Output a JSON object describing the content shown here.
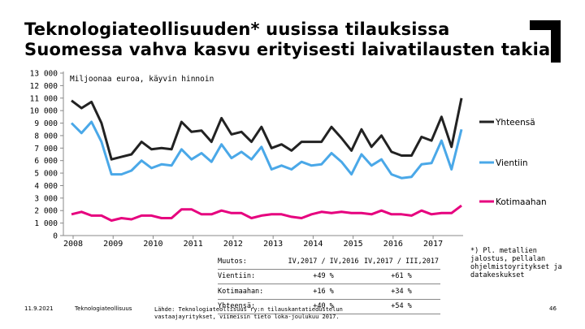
{
  "title": {
    "line1": "Teknologiateollisuuden* uusissa tilauksissa",
    "line2": "Suomessa vahva kasvu erityisesti laivatilausten takia"
  },
  "chart_data": {
    "type": "line",
    "unit_label": "Miljoonaa euroa, käyvin hinnoin",
    "ylim": [
      0,
      13000
    ],
    "yticks": [
      "0",
      "1 000",
      "2 000",
      "3 000",
      "4 000",
      "5 000",
      "6 000",
      "7 000",
      "8 000",
      "9 000",
      "10 000",
      "11 000",
      "12 000",
      "13 000"
    ],
    "ytick_values": [
      0,
      1000,
      2000,
      3000,
      4000,
      5000,
      6000,
      7000,
      8000,
      9000,
      10000,
      11000,
      12000,
      13000
    ],
    "xticks": [
      "2008",
      "2009",
      "2010",
      "2011",
      "2012",
      "2013",
      "2014",
      "2015",
      "2016",
      "2017"
    ],
    "x_start": "2008 Q1",
    "series": [
      {
        "name": "Yhteensä",
        "color": "#222222",
        "values": [
          10800,
          10200,
          10700,
          9000,
          6100,
          6300,
          6500,
          7500,
          6900,
          7000,
          6900,
          9100,
          8300,
          8400,
          7500,
          9400,
          8100,
          8300,
          7500,
          8700,
          7000,
          7300,
          6800,
          7500,
          7500,
          7500,
          8700,
          7800,
          6800,
          8500,
          7100,
          8000,
          6700,
          6400,
          6400,
          7900,
          7600,
          9500,
          7100,
          11000
        ]
      },
      {
        "name": "Vientiin",
        "color": "#4aa8e8",
        "values": [
          9000,
          8200,
          9100,
          7500,
          4900,
          4900,
          5200,
          6000,
          5400,
          5700,
          5600,
          6900,
          6100,
          6600,
          5900,
          7300,
          6200,
          6700,
          6100,
          7100,
          5300,
          5600,
          5300,
          5900,
          5600,
          5700,
          6600,
          5900,
          4900,
          6500,
          5600,
          6100,
          4900,
          4600,
          4700,
          5700,
          5800,
          7600,
          5300,
          8500
        ]
      },
      {
        "name": "Kotimaahan",
        "color": "#e6007e",
        "values": [
          1700,
          1900,
          1600,
          1600,
          1200,
          1400,
          1300,
          1600,
          1600,
          1400,
          1400,
          2100,
          2100,
          1700,
          1700,
          2000,
          1800,
          1800,
          1400,
          1600,
          1700,
          1700,
          1500,
          1400,
          1700,
          1900,
          1800,
          1900,
          1800,
          1800,
          1700,
          2000,
          1700,
          1700,
          1600,
          2000,
          1700,
          1800,
          1800,
          2400
        ]
      }
    ]
  },
  "changes_table": {
    "header": [
      "Muutos:",
      "IV,2017 / IV,2016",
      "IV,2017 / III,2017"
    ],
    "rows": [
      [
        "Vientiin:",
        "+49 %",
        "+61 %"
      ],
      [
        "Kotimaahan:",
        "+16 %",
        "+34 %"
      ],
      [
        "Yhteensä:",
        "+40 %",
        "+54 %"
      ]
    ]
  },
  "footnote": "*) Pl. metallien jalostus, pellalan ohjelmistoyritykset ja datakeskukset",
  "footer": {
    "date": "11.9.2021",
    "org": "Teknologiateollisuus",
    "source": "Lähde: Teknologiateollisuus ry:n tilauskantatiedustelun vastaajayritykset, viimeisin tieto loka-joulukuu 2017.",
    "page": "46"
  },
  "colors": {
    "accent_black": "#000000"
  }
}
